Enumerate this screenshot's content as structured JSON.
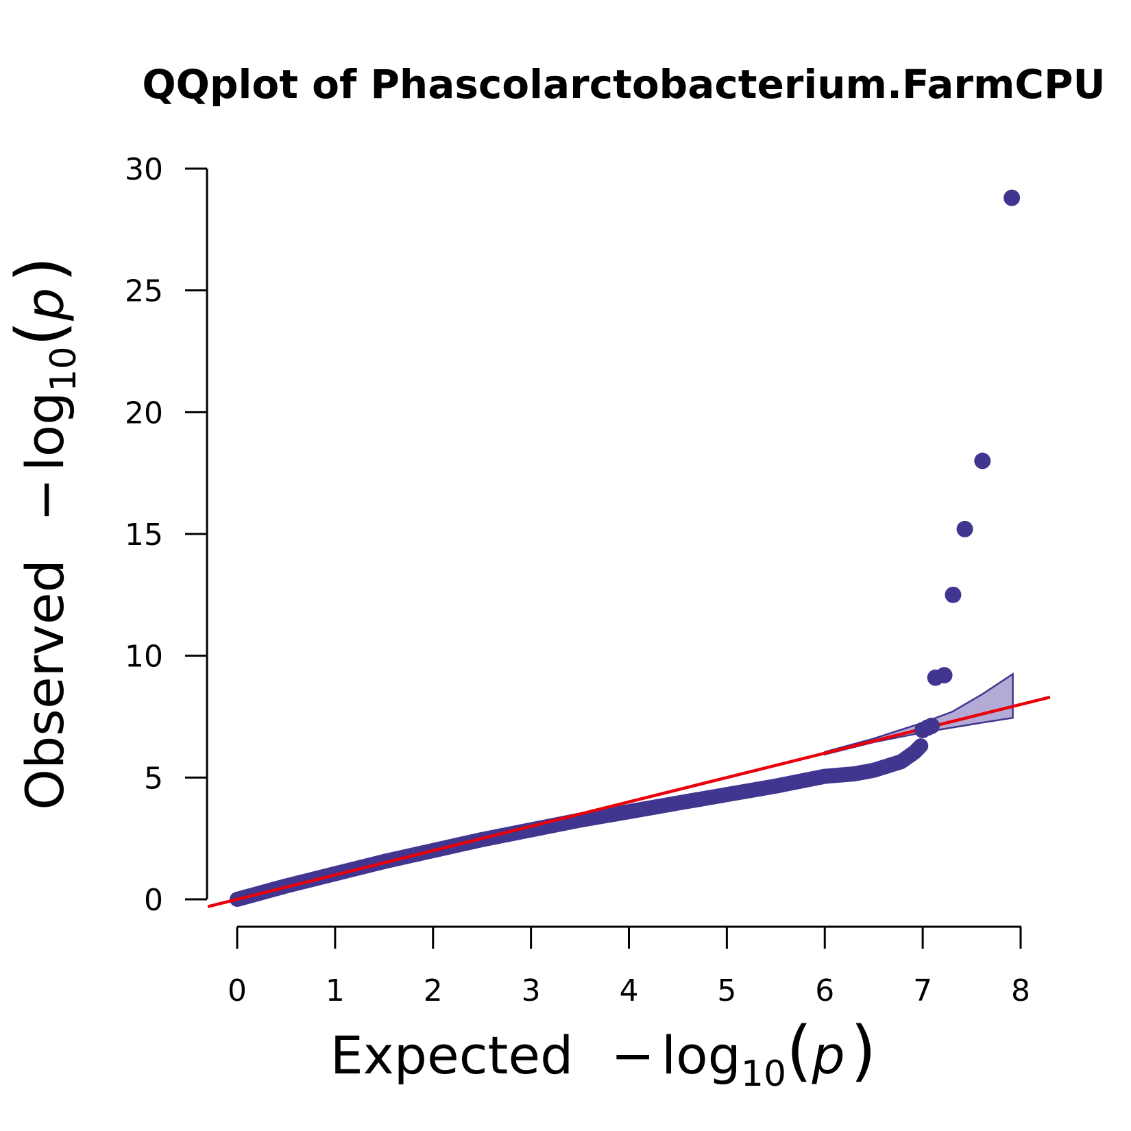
{
  "chart_data": {
    "type": "scatter",
    "title": "QQplot of Phascolarctobacterium.FarmCPU",
    "xlabel": {
      "prefix": "Expected",
      "minus": "−",
      "log": "log",
      "base": "10",
      "paren_open": "(",
      "var": "p",
      "paren_close": ")"
    },
    "ylabel": {
      "prefix": "Observed",
      "minus": "−",
      "log": "log",
      "base": "10",
      "paren_open": "(",
      "var": "p",
      "paren_close": ")"
    },
    "xlim": [
      0,
      8
    ],
    "ylim": [
      0,
      30
    ],
    "x_ticks": [
      0,
      1,
      2,
      3,
      4,
      5,
      6,
      7,
      8
    ],
    "y_ticks": [
      0,
      5,
      10,
      15,
      20,
      25,
      30
    ],
    "colors": {
      "points": "#41368f",
      "reference_line": "#e8000b",
      "confidence_band_fill": "#b3abd6",
      "confidence_band_stroke": "#41368f"
    },
    "reference_line": {
      "slope": 1,
      "intercept": 0
    },
    "confidence_band": {
      "x": [
        6.0,
        6.5,
        7.0,
        7.3,
        7.6,
        7.92
      ],
      "upper": [
        6.05,
        6.6,
        7.25,
        7.7,
        8.4,
        9.25
      ],
      "lower": [
        5.95,
        6.45,
        6.85,
        7.05,
        7.25,
        7.45
      ]
    },
    "bulk_curve": {
      "x": [
        0,
        0.5,
        1,
        1.5,
        2,
        2.5,
        3,
        3.5,
        4,
        4.5,
        5,
        5.5,
        6,
        6.3,
        6.5,
        6.7,
        6.78,
        6.85,
        6.92,
        6.98
      ],
      "y": [
        0,
        0.55,
        1.05,
        1.55,
        2.0,
        2.45,
        2.85,
        3.25,
        3.6,
        3.95,
        4.3,
        4.65,
        5.05,
        5.15,
        5.3,
        5.55,
        5.65,
        5.85,
        6.05,
        6.3
      ]
    },
    "points": [
      {
        "x": 7.0,
        "y": 6.95
      },
      {
        "x": 7.05,
        "y": 7.05
      },
      {
        "x": 7.09,
        "y": 7.12
      },
      {
        "x": 7.13,
        "y": 9.1
      },
      {
        "x": 7.22,
        "y": 9.2
      },
      {
        "x": 7.31,
        "y": 12.5
      },
      {
        "x": 7.43,
        "y": 15.2
      },
      {
        "x": 7.61,
        "y": 18.0
      },
      {
        "x": 7.91,
        "y": 28.8
      }
    ]
  }
}
